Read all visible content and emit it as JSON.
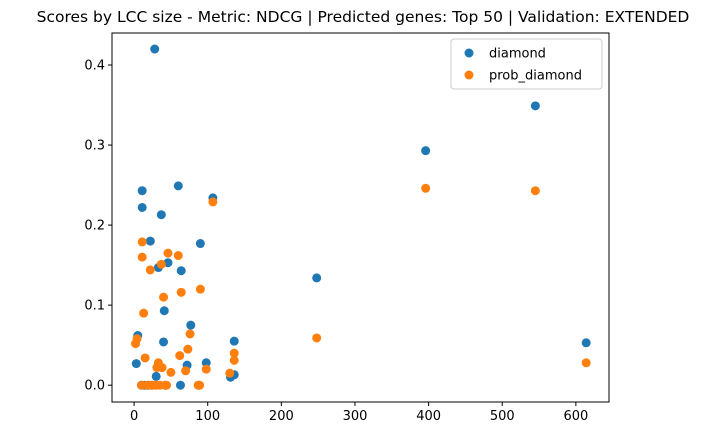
{
  "chart_data": {
    "type": "scatter",
    "title": "Scores by LCC size - Metric: NDCG | Predicted genes: Top 50 | Validation: EXTENDED",
    "xlabel": "",
    "ylabel": "",
    "xlim": [
      -30,
      645
    ],
    "ylim": [
      -0.021,
      0.44
    ],
    "xticks": [
      0,
      100,
      200,
      300,
      400,
      500,
      600
    ],
    "yticks": [
      0.0,
      0.1,
      0.2,
      0.3,
      0.4
    ],
    "ytick_labels": [
      "0.0",
      "0.1",
      "0.2",
      "0.3",
      "0.4"
    ],
    "grid": false,
    "legend_position": "top-right",
    "series": [
      {
        "name": "diamond",
        "color": "#1f77b4",
        "points": [
          [
            3,
            0.027
          ],
          [
            5,
            0.062
          ],
          [
            10,
            0.0
          ],
          [
            11,
            0.243
          ],
          [
            11,
            0.222
          ],
          [
            14,
            0.0
          ],
          [
            18,
            0.0
          ],
          [
            22,
            0.18
          ],
          [
            24,
            0.0
          ],
          [
            28,
            0.42
          ],
          [
            30,
            0.011
          ],
          [
            33,
            0.147
          ],
          [
            37,
            0.213
          ],
          [
            40,
            0.054
          ],
          [
            41,
            0.093
          ],
          [
            43,
            0.0
          ],
          [
            46,
            0.153
          ],
          [
            60,
            0.249
          ],
          [
            63,
            0.0
          ],
          [
            64,
            0.143
          ],
          [
            72,
            0.025
          ],
          [
            77,
            0.075
          ],
          [
            88,
            0.0
          ],
          [
            90,
            0.177
          ],
          [
            98,
            0.028
          ],
          [
            107,
            0.234
          ],
          [
            131,
            0.01
          ],
          [
            136,
            0.055
          ],
          [
            136,
            0.013
          ],
          [
            248,
            0.134
          ],
          [
            396,
            0.293
          ],
          [
            545,
            0.349
          ],
          [
            614,
            0.053
          ]
        ]
      },
      {
        "name": "prob_diamond",
        "color": "#ff7f0e",
        "points": [
          [
            2,
            0.052
          ],
          [
            4,
            0.058
          ],
          [
            10,
            0.0
          ],
          [
            11,
            0.16
          ],
          [
            11,
            0.179
          ],
          [
            13,
            0.09
          ],
          [
            15,
            0.034
          ],
          [
            18,
            0.0
          ],
          [
            20,
            0.0
          ],
          [
            22,
            0.144
          ],
          [
            26,
            0.0
          ],
          [
            30,
            0.0
          ],
          [
            31,
            0.022
          ],
          [
            33,
            0.028
          ],
          [
            35,
            0.0
          ],
          [
            37,
            0.151
          ],
          [
            38,
            0.022
          ],
          [
            40,
            0.11
          ],
          [
            42,
            0.0
          ],
          [
            44,
            0.0
          ],
          [
            46,
            0.165
          ],
          [
            50,
            0.016
          ],
          [
            60,
            0.162
          ],
          [
            62,
            0.037
          ],
          [
            64,
            0.116
          ],
          [
            70,
            0.018
          ],
          [
            73,
            0.045
          ],
          [
            76,
            0.064
          ],
          [
            87,
            0.0
          ],
          [
            89,
            0.0
          ],
          [
            90,
            0.12
          ],
          [
            98,
            0.02
          ],
          [
            107,
            0.229
          ],
          [
            130,
            0.015
          ],
          [
            136,
            0.04
          ],
          [
            136,
            0.031
          ],
          [
            248,
            0.059
          ],
          [
            396,
            0.246
          ],
          [
            545,
            0.243
          ],
          [
            614,
            0.028
          ]
        ]
      }
    ]
  }
}
